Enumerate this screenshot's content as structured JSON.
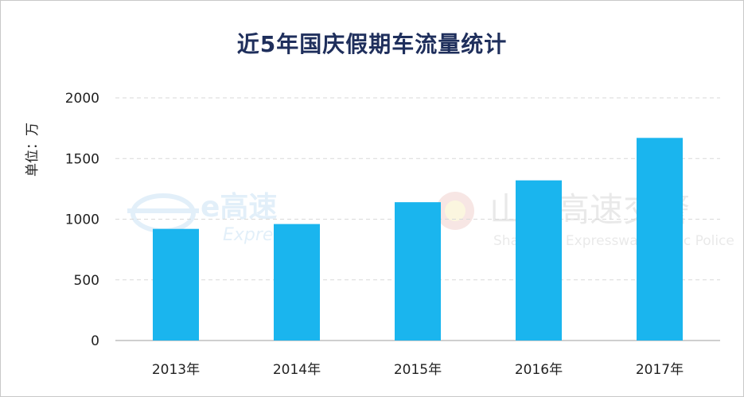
{
  "chart_data": {
    "type": "bar",
    "title": "近5年国庆假期车流量统计",
    "ylabel": "单位：万",
    "xlabel": "",
    "categories": [
      "2013年",
      "2014年",
      "2015年",
      "2016年",
      "2017年"
    ],
    "values": [
      920,
      960,
      1140,
      1320,
      1670
    ],
    "yticks": [
      0,
      500,
      1000,
      1500,
      2000
    ],
    "ylim": [
      0,
      2000
    ],
    "grid": true,
    "bar_color": "#1ab5ee"
  },
  "watermarks": {
    "left_name": "e高速",
    "left_sub": "Express",
    "right_name": "山东高速交警",
    "right_sub": "Shandong Expressway Traffic Police"
  }
}
